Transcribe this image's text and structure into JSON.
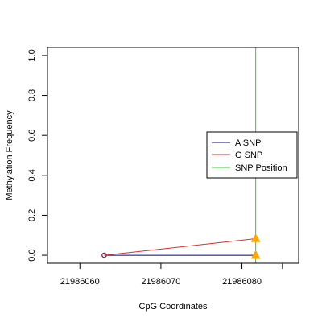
{
  "chart_data": {
    "type": "line",
    "title": "",
    "xlabel": "CpG Coordinates",
    "ylabel": "Methylation Frequency",
    "xlim": [
      21986056,
      21986087
    ],
    "ylim": [
      -0.04,
      1.04
    ],
    "x_ticks": [
      21986060,
      21986070,
      21986080
    ],
    "y_ticks": [
      0.0,
      0.2,
      0.4,
      0.6,
      0.8,
      1.0
    ],
    "x_tick_labels": [
      "21986060",
      "21986070",
      "21986080"
    ],
    "y_tick_labels": [
      "0.0",
      "0.2",
      "0.4",
      "0.6",
      "0.8",
      "1.0"
    ],
    "grid": false,
    "legend_position": "right",
    "series": [
      {
        "name": "A SNP",
        "color": "#00008b",
        "x": [
          21986063,
          21986081.7
        ],
        "y": [
          0.0,
          0.0
        ]
      },
      {
        "name": "G SNP",
        "color": "#cd3333",
        "x": [
          21986063,
          21986081.7
        ],
        "y": [
          0.0,
          0.083
        ]
      }
    ],
    "snp_position": {
      "name": "SNP Position",
      "color": "#32cd32",
      "x": 21986081.7
    },
    "markers": {
      "circle": {
        "x": 21986063,
        "y": 0.0,
        "color": "#8b1a4a"
      },
      "triangles": [
        {
          "x": 21986081.7,
          "y": 0.0,
          "color": "#ffa500"
        },
        {
          "x": 21986081.7,
          "y": 0.083,
          "color": "#ffa500"
        }
      ]
    }
  }
}
